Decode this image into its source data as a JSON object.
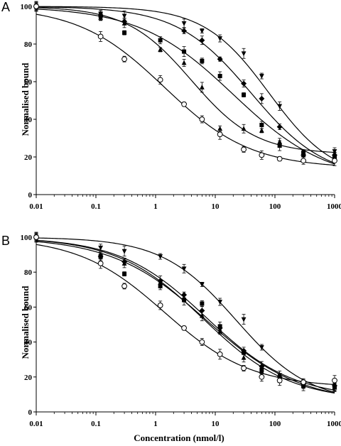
{
  "chart_data": [
    {
      "panel": "A",
      "type": "scatter",
      "xlabel": "",
      "ylabel": "Normalised bound",
      "x_scale": "log",
      "xlim": [
        0.01,
        1000
      ],
      "ylim": [
        0,
        100
      ],
      "x_ticks": [
        "0.01",
        "0.1",
        "1",
        "10",
        "100",
        "1000"
      ],
      "y_ticks": [
        "0",
        "20",
        "40",
        "60",
        "80",
        "100"
      ],
      "x": [
        0.01,
        0.12,
        0.3,
        1.2,
        3,
        6,
        12,
        30,
        60,
        120,
        300,
        1000
      ],
      "series": [
        {
          "marker": "triangle-down",
          "values": [
            100,
            96,
            95,
            null,
            91,
            87,
            83,
            75,
            63,
            47,
            22,
            23
          ]
        },
        {
          "marker": "diamond",
          "values": [
            100,
            95,
            92,
            null,
            87,
            82,
            72,
            59,
            51,
            36,
            21,
            21
          ]
        },
        {
          "marker": "square",
          "values": [
            100,
            95,
            86,
            82,
            76,
            71,
            63,
            53,
            37,
            26,
            22,
            20
          ]
        },
        {
          "marker": "triangle-up",
          "values": [
            100,
            94,
            91,
            77,
            70,
            57,
            35,
            35,
            34,
            28,
            21,
            21
          ]
        },
        {
          "marker": "circle-open",
          "values": [
            100,
            84,
            72,
            61,
            48,
            40,
            32,
            24,
            21,
            19,
            18,
            18
          ]
        }
      ]
    },
    {
      "panel": "B",
      "type": "scatter",
      "xlabel": "Concentration (nmol/l)",
      "ylabel": "Normalised bound",
      "x_scale": "log",
      "xlim": [
        0.01,
        1000
      ],
      "ylim": [
        0,
        100
      ],
      "x_ticks": [
        "0.01",
        "0.1",
        "1",
        "10",
        "100",
        "1000"
      ],
      "y_ticks": [
        "0",
        "20",
        "40",
        "60",
        "80",
        "100"
      ],
      "x": [
        0.01,
        0.12,
        0.3,
        1.2,
        3,
        6,
        12,
        30,
        60,
        120,
        300,
        1000
      ],
      "series": [
        {
          "marker": "triangle-down",
          "values": [
            100,
            94,
            92,
            89,
            82,
            73,
            63,
            53,
            37,
            21,
            16,
            14
          ]
        },
        {
          "marker": "diamond",
          "values": [
            100,
            89,
            86,
            75,
            67,
            58,
            48,
            35,
            26,
            20,
            16,
            15
          ]
        },
        {
          "marker": "square",
          "values": [
            100,
            89,
            79,
            72,
            64,
            62,
            49,
            34,
            24,
            18,
            15,
            14
          ]
        },
        {
          "marker": "triangle-up",
          "values": [
            100,
            89,
            85,
            74,
            65,
            55,
            46,
            31,
            23,
            19,
            15,
            14
          ]
        },
        {
          "marker": "circle-open",
          "values": [
            100,
            85,
            72,
            61,
            48,
            40,
            33,
            25,
            20,
            18,
            17,
            18
          ]
        }
      ]
    }
  ]
}
